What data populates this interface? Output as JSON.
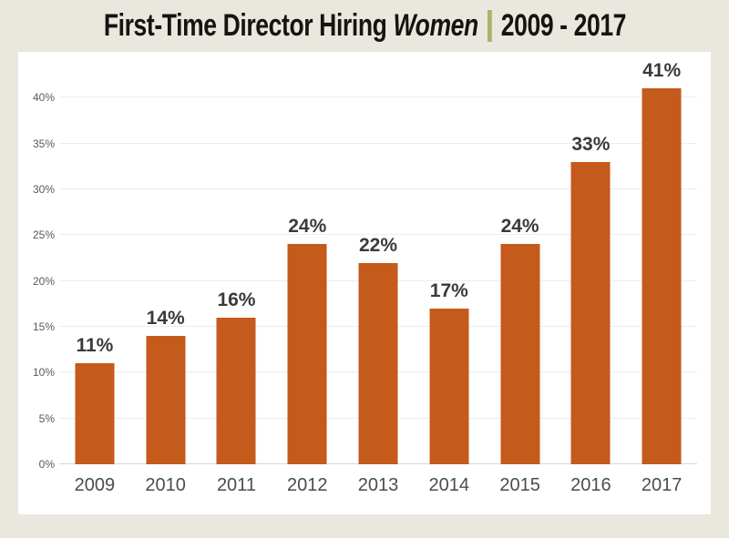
{
  "page": {
    "background_color": "#e9e7de",
    "panel_background_color": "#ffffff"
  },
  "title": {
    "prefix": "First-Time Director Hiring",
    "emphasis": "Women",
    "suffix": "2009 - 2017",
    "text_color": "#161412",
    "separator_color": "#a8b466"
  },
  "chart_data": {
    "type": "bar",
    "title": "First-Time Director Hiring Women | 2009 - 2017",
    "categories": [
      "2009",
      "2010",
      "2011",
      "2012",
      "2013",
      "2014",
      "2015",
      "2016",
      "2017"
    ],
    "values": [
      11,
      14,
      16,
      24,
      22,
      17,
      24,
      33,
      41
    ],
    "data_labels": [
      "11%",
      "14%",
      "16%",
      "24%",
      "22%",
      "17%",
      "24%",
      "33%",
      "41%"
    ],
    "xlabel": "",
    "ylabel": "",
    "ylim": [
      0,
      45
    ],
    "y_ticks": [
      {
        "value": 0,
        "label": "0%"
      },
      {
        "value": 5,
        "label": "5%"
      },
      {
        "value": 10,
        "label": "10%"
      },
      {
        "value": 15,
        "label": "15%"
      },
      {
        "value": 20,
        "label": "20%"
      },
      {
        "value": 25,
        "label": "25%"
      },
      {
        "value": 30,
        "label": "30%"
      },
      {
        "value": 35,
        "label": "35%"
      },
      {
        "value": 40,
        "label": "40%"
      }
    ],
    "grid": true,
    "legend": false,
    "bar_color": "#c45a1b",
    "data_label_color": "#3a3a3a",
    "axis_tick_color": "#595959",
    "x_label_color": "#4c4c4c",
    "gridline_color": "#ededed",
    "baseline_color": "#d9d9d9"
  }
}
